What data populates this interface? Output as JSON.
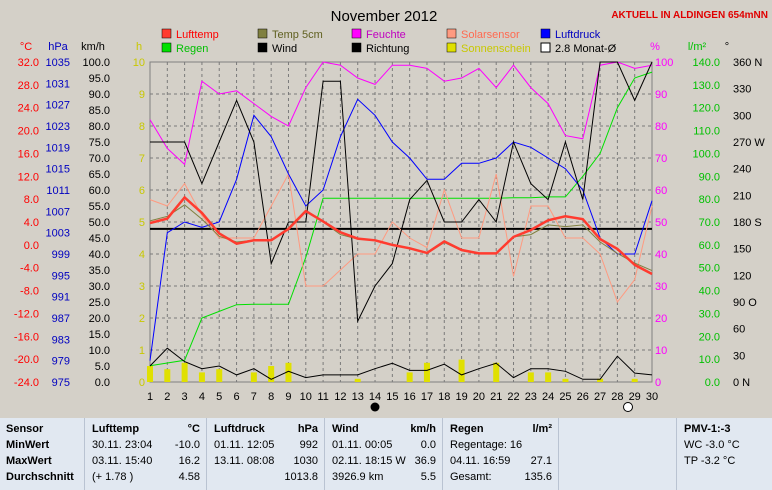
{
  "chart_data": {
    "type": "line",
    "title": "November 2012",
    "station_note": "AKTUELL IN ALDINGEN 654mNN",
    "x": [
      1,
      2,
      3,
      4,
      5,
      6,
      7,
      8,
      9,
      10,
      11,
      12,
      13,
      14,
      15,
      16,
      17,
      18,
      19,
      20,
      21,
      22,
      23,
      24,
      25,
      26,
      27,
      28,
      29,
      30
    ],
    "axes": {
      "celsius": {
        "unit": "°C",
        "ticks": [
          "32.0",
          "28.0",
          "24.0",
          "20.0",
          "16.0",
          "12.0",
          "8.0",
          "4.0",
          "0.0",
          "-4.0",
          "-8.0",
          "-12.0",
          "-16.0",
          "-20.0",
          "-24.0"
        ],
        "range": [
          -24,
          32
        ]
      },
      "hpa": {
        "unit": "hPa",
        "ticks": [
          "1035",
          "1031",
          "1027",
          "1023",
          "1019",
          "1015",
          "1011",
          "1007",
          "1003",
          "999",
          "995",
          "991",
          "987",
          "983",
          "979",
          "975"
        ],
        "range": [
          975,
          1035
        ]
      },
      "kmh": {
        "unit": "km/h",
        "ticks": [
          "100.0",
          "95.0",
          "90.0",
          "85.0",
          "80.0",
          "75.0",
          "70.0",
          "65.0",
          "60.0",
          "55.0",
          "50.0",
          "45.0",
          "40.0",
          "35.0",
          "30.0",
          "25.0",
          "20.0",
          "15.0",
          "10.0",
          "5.0",
          "0.0"
        ],
        "range": [
          0,
          100
        ]
      },
      "hours": {
        "unit": "h",
        "ticks": [
          "10",
          "9",
          "8",
          "7",
          "6",
          "5",
          "4",
          "3",
          "2",
          "1",
          "0"
        ],
        "range": [
          0,
          10
        ]
      },
      "percent": {
        "unit": "%",
        "ticks": [
          "100",
          "90",
          "80",
          "70",
          "60",
          "50",
          "40",
          "30",
          "20",
          "10",
          "0"
        ],
        "range": [
          0,
          100
        ]
      },
      "rain": {
        "unit": "l/m²",
        "ticks": [
          "140.0",
          "130.0",
          "120.0",
          "110.0",
          "100.0",
          "90.0",
          "80.0",
          "70.0",
          "60.0",
          "50.0",
          "40.0",
          "30.0",
          "20.0",
          "10.0",
          "0.0"
        ],
        "range": [
          0,
          140
        ]
      },
      "direction": {
        "unit": "°",
        "ticks": [
          "360 N",
          "330",
          "300",
          "270 W",
          "240",
          "210",
          "180 S",
          "150",
          "120",
          "90 O",
          "60",
          "30",
          "0  N"
        ],
        "range": [
          0,
          360
        ]
      }
    },
    "legend": [
      {
        "name": "Lufttemp",
        "color": "#ff3b2f"
      },
      {
        "name": "Temp 5cm",
        "color": "#808040"
      },
      {
        "name": "Feuchte",
        "color": "#ff00ff"
      },
      {
        "name": "Solarsensor",
        "color": "#ff9a80"
      },
      {
        "name": "Luftdruck",
        "color": "#0000ff"
      },
      {
        "name": "Regen",
        "color": "#00e000"
      },
      {
        "name": "Wind",
        "color": "#000000"
      },
      {
        "name": "Richtung",
        "color": "#000000"
      },
      {
        "name": "Sonnenschein",
        "color": "#e0e000"
      },
      {
        "name": "2.8 Monat-Ø",
        "color": "#000000"
      }
    ],
    "monthly_mean_c": 2.8,
    "series": [
      {
        "name": "Lufttemp",
        "axis": "celsius",
        "color": "#ff3b2f",
        "values": [
          3.8,
          4.6,
          8.3,
          5.6,
          2.0,
          0.2,
          0.8,
          0.8,
          2.8,
          5.9,
          4.1,
          2.2,
          1.1,
          0.8,
          0.0,
          -0.6,
          -1.4,
          0.6,
          -0.9,
          -1.5,
          -1.5,
          1.4,
          2.6,
          4.3,
          5.0,
          4.5,
          1.0,
          -0.7,
          -3.5,
          -5.1
        ]
      },
      {
        "name": "Temp 5cm",
        "axis": "celsius",
        "color": "#808040",
        "values": [
          4.2,
          5.0,
          7.0,
          4.5,
          1.5,
          0.5,
          0.8,
          0.8,
          3.0,
          6.1,
          4.0,
          1.8,
          1.0,
          0.8,
          0.0,
          -0.5,
          -1.5,
          0.4,
          -1.0,
          -1.5,
          -1.5,
          1.4,
          1.8,
          3.5,
          3.2,
          3.5,
          0.5,
          -1.5,
          -3.2,
          -4.5
        ]
      },
      {
        "name": "Feuchte",
        "axis": "percent",
        "color": "#ff00ff",
        "values": [
          82,
          73,
          68,
          94,
          90,
          91,
          87,
          83,
          80,
          92,
          100,
          99,
          95,
          93,
          99,
          99,
          98,
          94,
          95,
          98,
          92,
          99,
          92,
          87,
          77,
          76,
          99,
          100,
          98,
          99
        ]
      },
      {
        "name": "Solarsensor",
        "axis": "kmh",
        "color": "#ff9a80",
        "values": [
          57,
          55,
          62,
          52,
          45,
          45,
          45,
          55,
          65,
          30,
          30,
          35,
          40,
          40,
          50,
          45,
          42,
          60,
          45,
          45,
          65,
          33,
          55,
          55,
          45,
          45,
          40,
          25,
          32,
          55
        ]
      },
      {
        "name": "Luftdruck",
        "axis": "hpa",
        "color": "#0000ff",
        "values": [
          979,
          1003,
          1005,
          1004,
          1005,
          1013,
          1025,
          1021,
          1014,
          1008,
          1011,
          1021,
          1028,
          1025,
          1020,
          1017,
          1013,
          1013,
          1016,
          1016,
          1017,
          1020,
          1019,
          1017,
          1015,
          1011,
          1002,
          999,
          999,
          1009
        ]
      },
      {
        "name": "Regen",
        "axis": "rain",
        "color": "#00e000",
        "values": [
          7.1,
          8.3,
          9.5,
          28.0,
          30.9,
          33.8,
          34.0,
          34.0,
          34.0,
          54.5,
          80.4,
          80.4,
          80.4,
          80.4,
          80.4,
          80.4,
          80.4,
          80.4,
          80.4,
          80.4,
          80.4,
          80.6,
          80.6,
          81.0,
          81.0,
          90.0,
          100.0,
          120.0,
          133.0,
          135.6
        ]
      },
      {
        "name": "Wind",
        "axis": "kmh",
        "color": "#000000",
        "values": [
          75,
          75,
          75,
          62,
          75,
          88,
          75,
          37,
          50,
          50,
          94,
          94,
          19,
          30,
          37,
          57,
          63,
          50,
          50,
          57,
          50,
          75,
          62,
          57,
          75,
          57,
          100,
          100,
          88,
          100
        ]
      },
      {
        "name": "Richtung",
        "axis": "direction",
        "color": "#000000",
        "values": [
          18,
          38,
          23,
          15,
          18,
          8,
          15,
          3,
          12,
          5,
          8,
          8,
          8,
          15,
          21,
          13,
          13,
          20,
          8,
          15,
          21,
          5,
          15,
          15,
          12,
          3,
          3,
          29,
          10,
          8
        ]
      },
      {
        "name": "Sonnenschein",
        "axis": "hours",
        "color": "#e0e000",
        "values": [
          0.5,
          0.4,
          0.6,
          0.3,
          0.4,
          0.0,
          0.3,
          0.5,
          0.6,
          0.0,
          0.0,
          0.0,
          0.1,
          0.0,
          0.0,
          0.3,
          0.6,
          0.0,
          0.7,
          0.0,
          0.6,
          0.0,
          0.3,
          0.3,
          0.1,
          0.0,
          0.1,
          0.0,
          0.1,
          0.0
        ]
      }
    ]
  },
  "table": {
    "sensor": {
      "header": "Sensor",
      "rows": [
        "MinWert",
        "MaxWert",
        "Durchschnitt"
      ]
    },
    "lufttemp": {
      "header": "Lufttemp",
      "unit": "°C",
      "rows": [
        [
          "30.11.  23:04",
          "-10.0"
        ],
        [
          "03.11.  15:40",
          "16.2"
        ],
        [
          "(+ 1.78 )",
          "4.58"
        ]
      ]
    },
    "luftdruck": {
      "header": "Luftdruck",
      "unit": "hPa",
      "rows": [
        [
          "01.11.  12:05",
          "992"
        ],
        [
          "13.11.  08:08",
          "1030"
        ],
        [
          "",
          "1013.8"
        ]
      ]
    },
    "wind": {
      "header": "Wind",
      "unit": "km/h",
      "rows": [
        [
          "01.11.  00:05",
          "0.0"
        ],
        [
          "02.11.  18:15  W",
          "36.9"
        ],
        [
          "3926.9 km",
          "5.5"
        ]
      ]
    },
    "regen": {
      "header": "Regen",
      "unit": "l/m²",
      "rows": [
        [
          "Regentage: 16",
          ""
        ],
        [
          "04.11.  16:59",
          "27.1"
        ],
        [
          "Gesamt:",
          "135.6"
        ]
      ]
    },
    "pmv": {
      "header": "PMV-1:-3",
      "rows": [
        "WC -3.0 °C",
        "TP -3.2 °C"
      ]
    }
  }
}
